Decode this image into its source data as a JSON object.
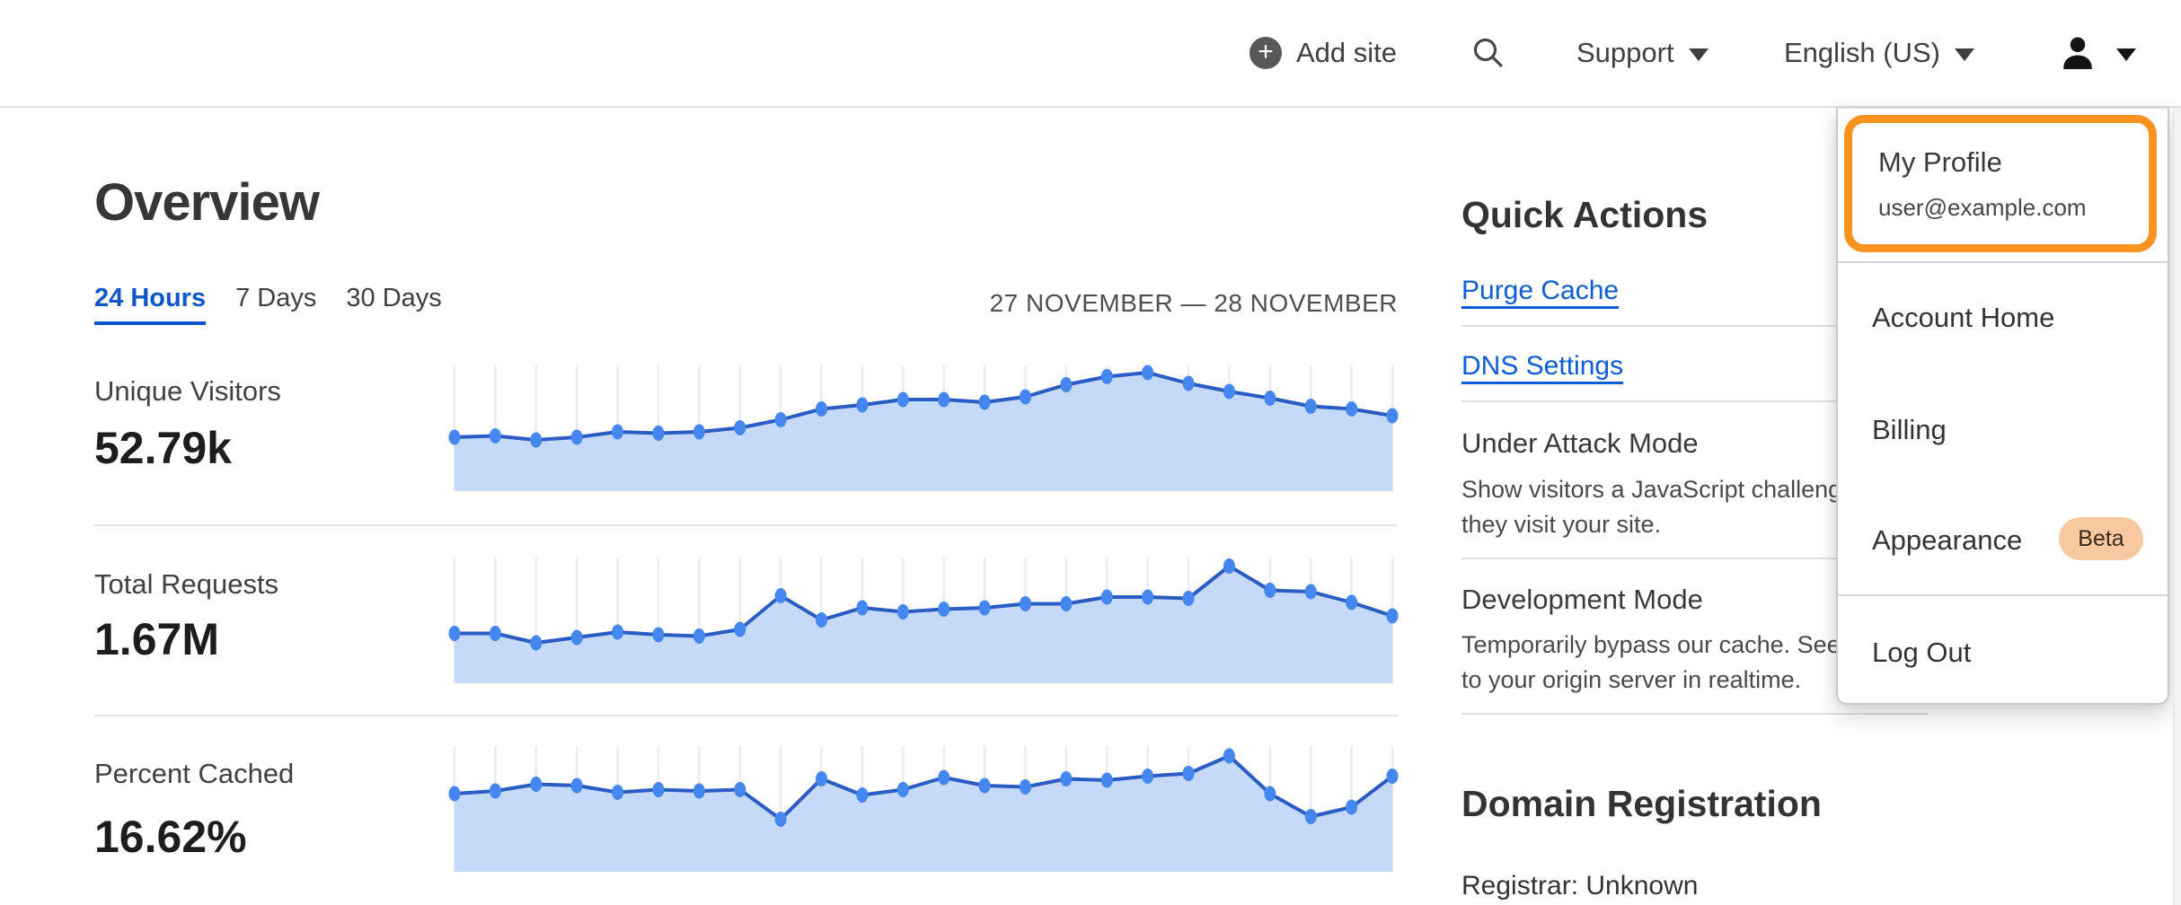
{
  "nav": {
    "add_site_label": "Add site",
    "support_label": "Support",
    "language_label": "English (US)",
    "icons": {
      "add_site": "plus-icon",
      "search": "search-icon",
      "support": "caret-down-icon",
      "language": "caret-down-icon",
      "account": "user-icon",
      "account_caret": "caret-down-icon"
    }
  },
  "overview": {
    "title": "Overview",
    "tabs": [
      {
        "label": "24 Hours",
        "active": true
      },
      {
        "label": "7 Days",
        "active": false
      },
      {
        "label": "30 Days",
        "active": false
      }
    ],
    "date_range": "27 NOVEMBER — 28 NOVEMBER",
    "metrics": [
      {
        "label": "Unique Visitors",
        "value": "52.79k"
      },
      {
        "label": "Total Requests",
        "value": "1.67M"
      },
      {
        "label": "Percent Cached",
        "value": "16.62%"
      }
    ]
  },
  "chart_data": [
    {
      "type": "area",
      "title": "Unique Visitors",
      "total_label": "52.79k",
      "x_axis": "24 hourly points, 27 November — 28 November (unlabeled)",
      "y_axis": "unlabeled; values are relative heights 0-1 read from pixels",
      "grid": "vertical gridlines at each point",
      "values_normalized": [
        0.4,
        0.41,
        0.38,
        0.4,
        0.44,
        0.43,
        0.44,
        0.47,
        0.53,
        0.61,
        0.64,
        0.68,
        0.68,
        0.66,
        0.7,
        0.79,
        0.85,
        0.88,
        0.8,
        0.74,
        0.69,
        0.63,
        0.61,
        0.56
      ]
    },
    {
      "type": "area",
      "title": "Total Requests",
      "total_label": "1.67M",
      "x_axis": "24 hourly points, 27 November — 28 November (unlabeled)",
      "y_axis": "unlabeled; values are relative heights 0-1 read from pixels",
      "grid": "vertical gridlines at each point",
      "values_normalized": [
        0.37,
        0.37,
        0.3,
        0.34,
        0.38,
        0.36,
        0.35,
        0.4,
        0.65,
        0.47,
        0.56,
        0.53,
        0.55,
        0.56,
        0.59,
        0.59,
        0.64,
        0.64,
        0.63,
        0.87,
        0.69,
        0.68,
        0.6,
        0.5
      ]
    },
    {
      "type": "area",
      "title": "Percent Cached",
      "total_label": "16.62%",
      "x_axis": "24 hourly points, 27 November — 28 November (unlabeled)",
      "y_axis": "unlabeled; values are relative heights 0-1 read from pixels",
      "grid": "vertical gridlines at each point",
      "values_normalized": [
        0.58,
        0.6,
        0.65,
        0.64,
        0.59,
        0.61,
        0.6,
        0.61,
        0.39,
        0.69,
        0.57,
        0.61,
        0.7,
        0.64,
        0.63,
        0.69,
        0.68,
        0.71,
        0.73,
        0.86,
        0.58,
        0.41,
        0.48,
        0.71
      ]
    }
  ],
  "quick_actions": {
    "title": "Quick Actions",
    "links": [
      {
        "label": "Purge Cache"
      },
      {
        "label": "DNS Settings"
      }
    ],
    "toggles": [
      {
        "label": "Under Attack Mode",
        "description": "Show visitors a JavaScript challenge when they visit your site."
      },
      {
        "label": "Development Mode",
        "description": "Temporarily bypass our cache. See changes to your origin server in realtime."
      }
    ]
  },
  "domain_registration": {
    "title": "Domain Registration",
    "registrar_line": "Registrar: Unknown"
  },
  "user_menu": {
    "profile": {
      "label": "My Profile",
      "email": "user@example.com"
    },
    "items": [
      {
        "label": "Account Home"
      },
      {
        "label": "Billing"
      },
      {
        "label": "Appearance",
        "badge": "Beta"
      },
      {
        "label": "Log Out"
      }
    ]
  },
  "colors": {
    "accent_orange_focus_ring": "#f7931e",
    "link_blue": "#0b5cd5",
    "active_tab_blue": "#0f56c9",
    "chart_line": "#2a5cc4",
    "chart_dot": "#4587f1",
    "chart_fill": "#c5d9f9",
    "chart_grid": "#e8edf5",
    "beta_badge_bg": "#f8c9a0",
    "beta_badge_text": "#3a2a1b"
  }
}
